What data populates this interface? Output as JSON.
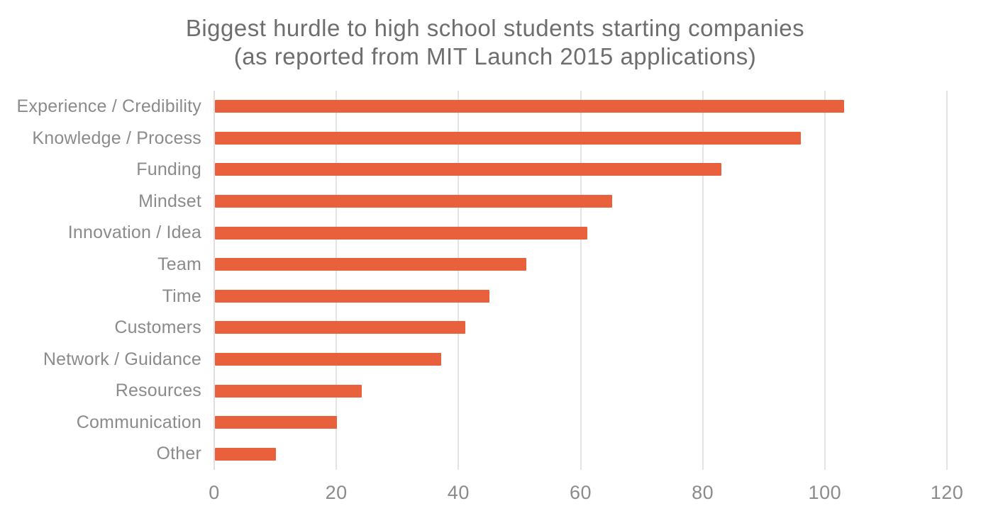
{
  "chart_data": {
    "type": "bar",
    "orientation": "horizontal",
    "title": "Biggest hurdle to high school students starting companies",
    "subtitle": "(as reported from MIT Launch 2015 applications)",
    "categories": [
      "Experience / Credibility",
      "Knowledge / Process",
      "Funding",
      "Mindset",
      "Innovation / Idea",
      "Team",
      "Time",
      "Customers",
      "Network / Guidance",
      "Resources",
      "Communication",
      "Other"
    ],
    "values": [
      103,
      96,
      83,
      65,
      61,
      51,
      45,
      41,
      37,
      24,
      20,
      10
    ],
    "xlabel": "",
    "ylabel": "",
    "xlim": [
      0,
      120
    ],
    "xticks": [
      0,
      20,
      40,
      60,
      80,
      100,
      120
    ],
    "grid": "vertical-gridlines-only",
    "legend": "none",
    "colors": {
      "bar": "#E8613C",
      "gridline": "#E4E4E4",
      "axis_line": "#DFDFDF",
      "title_text": "#6E6E6E",
      "label_text": "#8B8B8B",
      "tick_text": "#8B8B8B",
      "background": "#FFFFFF"
    }
  }
}
